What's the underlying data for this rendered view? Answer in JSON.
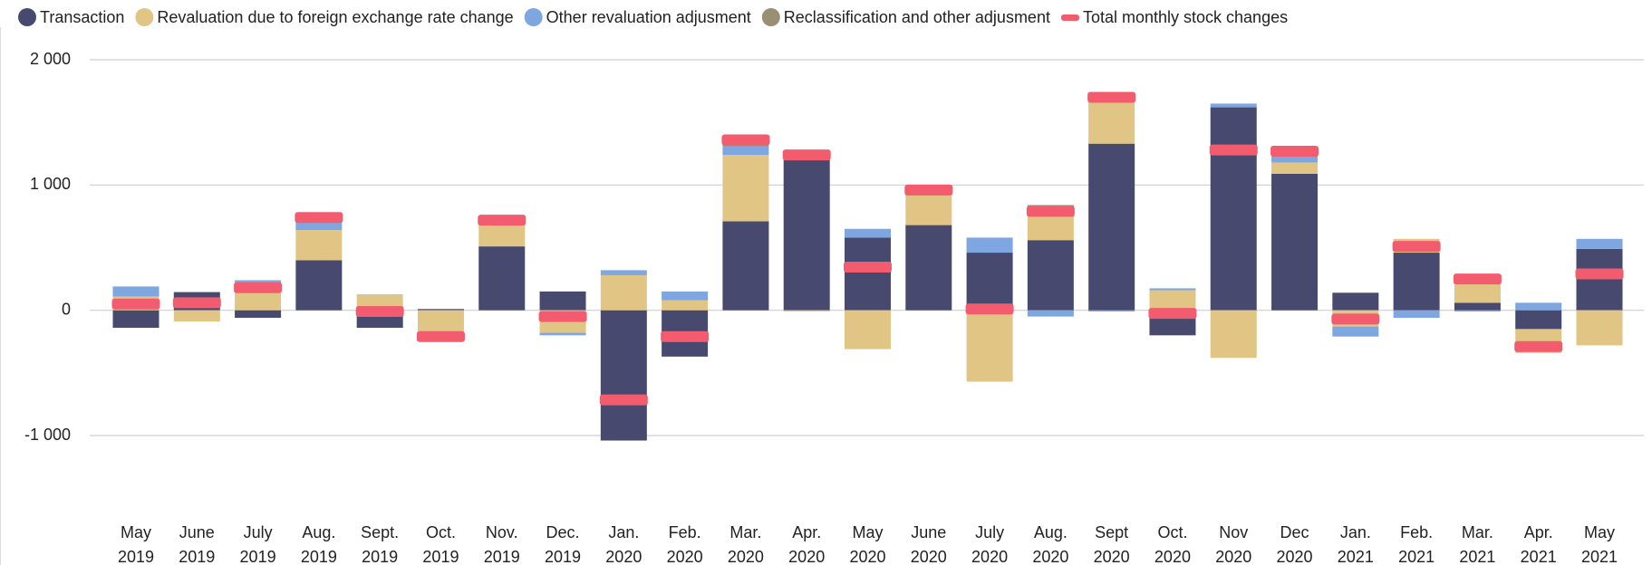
{
  "chart_data": {
    "type": "bar",
    "stacked": true,
    "categories": [
      "May 2019",
      "June 2019",
      "July 2019",
      "Aug. 2019",
      "Sept. 2019",
      "Oct. 2019",
      "Nov. 2019",
      "Dec. 2019",
      "Jan. 2020",
      "Feb. 2020",
      "Mar. 2020",
      "Apr. 2020",
      "May 2020",
      "June 2020",
      "July 2020",
      "Aug. 2020",
      "Sept 2020",
      "Oct. 2020",
      "Nov 2020",
      "Dec 2020",
      "Jan. 2021",
      "Feb. 2021",
      "Mar. 2021",
      "Apr. 2021",
      "May 2021"
    ],
    "series": [
      {
        "name": "Transaction",
        "color": "#474a6e",
        "values": [
          -140,
          145,
          -60,
          400,
          -140,
          10,
          510,
          150,
          -1040,
          -370,
          710,
          1200,
          580,
          680,
          460,
          560,
          1330,
          -200,
          1620,
          1090,
          140,
          460,
          60,
          -150,
          490
        ]
      },
      {
        "name": "Revaluation due to foreign exchange rate change",
        "color": "#e0c584",
        "values": [
          110,
          -90,
          210,
          240,
          120,
          -200,
          180,
          -180,
          280,
          80,
          530,
          -10,
          -310,
          240,
          -570,
          220,
          340,
          160,
          -380,
          90,
          -130,
          110,
          160,
          -190,
          -280
        ]
      },
      {
        "name": "Other revaluation adjusment",
        "color": "#7ea6e0",
        "values": [
          80,
          0,
          30,
          60,
          5,
          0,
          0,
          -20,
          40,
          70,
          70,
          0,
          70,
          0,
          120,
          -50,
          -10,
          15,
          30,
          50,
          -80,
          -60,
          -10,
          60,
          80
        ]
      },
      {
        "name": "Reclassification and other adjusment",
        "color": "#9a8f73",
        "values": [
          0,
          0,
          0,
          40,
          0,
          -20,
          30,
          0,
          0,
          0,
          50,
          50,
          0,
          50,
          0,
          60,
          40,
          0,
          0,
          30,
          0,
          0,
          40,
          0,
          0
        ]
      },
      {
        "name": "Total monthly stock changes",
        "color": "#f25c6e",
        "type": "marker",
        "values": [
          50,
          60,
          180,
          740,
          -10,
          -210,
          720,
          -50,
          -715,
          -210,
          1360,
          1240,
          345,
          960,
          10,
          790,
          1700,
          -25,
          1280,
          1270,
          -70,
          510,
          250,
          -290,
          290
        ]
      }
    ],
    "ylim": [
      -1000,
      2000
    ],
    "yticks": [
      {
        "value": -1000,
        "label": "-1 000"
      },
      0,
      {
        "value": 1000,
        "label": "1 000"
      },
      {
        "value": 2000,
        "label": "2 000"
      }
    ],
    "grid": true,
    "legend": "top"
  }
}
